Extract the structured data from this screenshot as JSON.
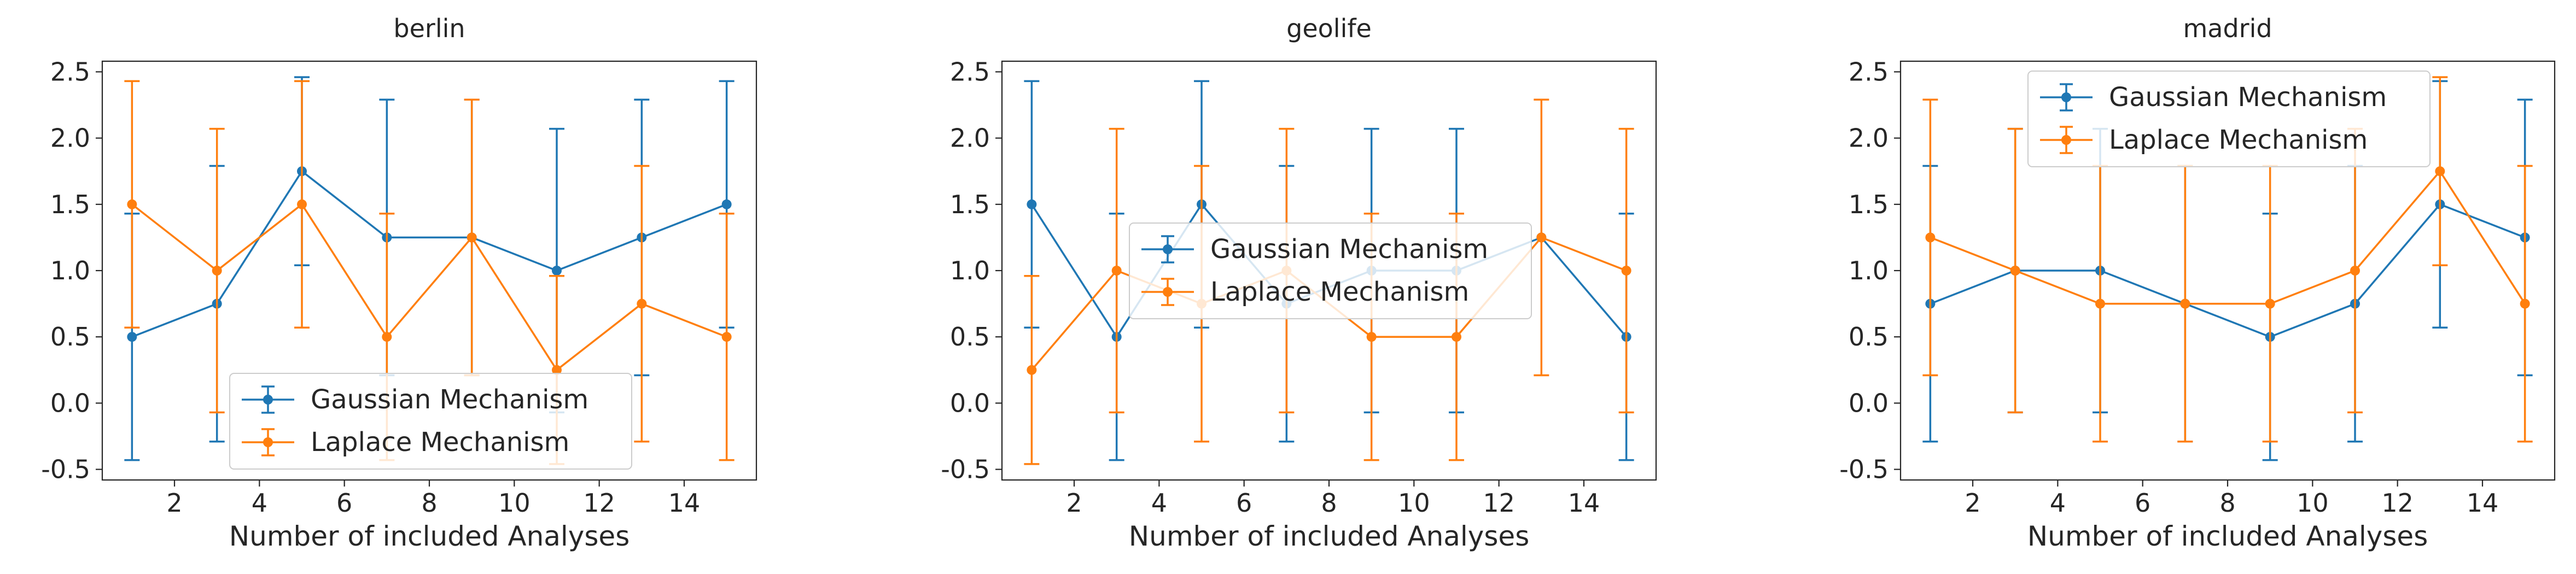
{
  "chart_data": [
    {
      "type": "line",
      "title": "berlin",
      "xlabel": "Number of included Analyses",
      "ylabel": "",
      "xlim": [
        0.3,
        15.7
      ],
      "ylim": [
        -0.58,
        2.58
      ],
      "xticks": [
        2,
        4,
        6,
        8,
        10,
        12,
        14
      ],
      "yticks": [
        -0.5,
        0.0,
        0.5,
        1.0,
        1.5,
        2.0,
        2.5
      ],
      "legend_position": "lower-center",
      "series": [
        {
          "name": "Gaussian Mechanism",
          "color": "#1f77b4",
          "x": [
            1,
            3,
            5,
            7,
            9,
            11,
            13,
            15
          ],
          "y": [
            0.5,
            0.75,
            1.75,
            1.25,
            1.25,
            1.0,
            1.25,
            1.5
          ],
          "err": [
            0.93,
            1.04,
            0.71,
            1.04,
            1.04,
            1.07,
            1.04,
            0.93
          ]
        },
        {
          "name": "Laplace Mechanism",
          "color": "#ff7f0e",
          "x": [
            1,
            3,
            5,
            7,
            9,
            11,
            13,
            15
          ],
          "y": [
            1.5,
            1.0,
            1.5,
            0.5,
            1.25,
            0.25,
            0.75,
            0.5
          ],
          "err": [
            0.93,
            1.07,
            0.93,
            0.93,
            1.04,
            0.71,
            1.04,
            0.93
          ]
        }
      ]
    },
    {
      "type": "line",
      "title": "geolife",
      "xlabel": "Number of included Analyses",
      "ylabel": "",
      "xlim": [
        0.3,
        15.7
      ],
      "ylim": [
        -0.58,
        2.58
      ],
      "xticks": [
        2,
        4,
        6,
        8,
        10,
        12,
        14
      ],
      "yticks": [
        -0.5,
        0.0,
        0.5,
        1.0,
        1.5,
        2.0,
        2.5
      ],
      "legend_position": "center",
      "series": [
        {
          "name": "Gaussian Mechanism",
          "color": "#1f77b4",
          "x": [
            1,
            3,
            5,
            7,
            9,
            11,
            13,
            15
          ],
          "y": [
            1.5,
            0.5,
            1.5,
            0.75,
            1.0,
            1.0,
            1.25,
            0.5
          ],
          "err": [
            0.93,
            0.93,
            0.93,
            1.04,
            1.07,
            1.07,
            0.0,
            0.93
          ]
        },
        {
          "name": "Laplace Mechanism",
          "color": "#ff7f0e",
          "x": [
            1,
            3,
            5,
            7,
            9,
            11,
            13,
            15
          ],
          "y": [
            0.25,
            1.0,
            0.75,
            1.0,
            0.5,
            0.5,
            1.25,
            1.0
          ],
          "err": [
            0.71,
            1.07,
            1.04,
            1.07,
            0.93,
            0.93,
            1.04,
            1.07
          ]
        }
      ]
    },
    {
      "type": "line",
      "title": "madrid",
      "xlabel": "Number of included Analyses",
      "ylabel": "",
      "xlim": [
        0.3,
        15.7
      ],
      "ylim": [
        -0.58,
        2.58
      ],
      "xticks": [
        2,
        4,
        6,
        8,
        10,
        12,
        14
      ],
      "yticks": [
        -0.5,
        0.0,
        0.5,
        1.0,
        1.5,
        2.0,
        2.5
      ],
      "legend_position": "upper-center",
      "series": [
        {
          "name": "Gaussian Mechanism",
          "color": "#1f77b4",
          "x": [
            1,
            3,
            5,
            7,
            9,
            11,
            13,
            15
          ],
          "y": [
            0.75,
            1.0,
            1.0,
            0.75,
            0.5,
            0.75,
            1.5,
            1.25
          ],
          "err": [
            1.04,
            1.07,
            1.07,
            1.04,
            0.93,
            1.04,
            0.93,
            1.04
          ]
        },
        {
          "name": "Laplace Mechanism",
          "color": "#ff7f0e",
          "x": [
            1,
            3,
            5,
            7,
            9,
            11,
            13,
            15
          ],
          "y": [
            1.25,
            1.0,
            0.75,
            0.75,
            0.75,
            1.0,
            1.75,
            0.75
          ],
          "err": [
            1.04,
            1.07,
            1.04,
            1.04,
            1.04,
            1.07,
            0.71,
            1.04
          ]
        }
      ]
    }
  ]
}
